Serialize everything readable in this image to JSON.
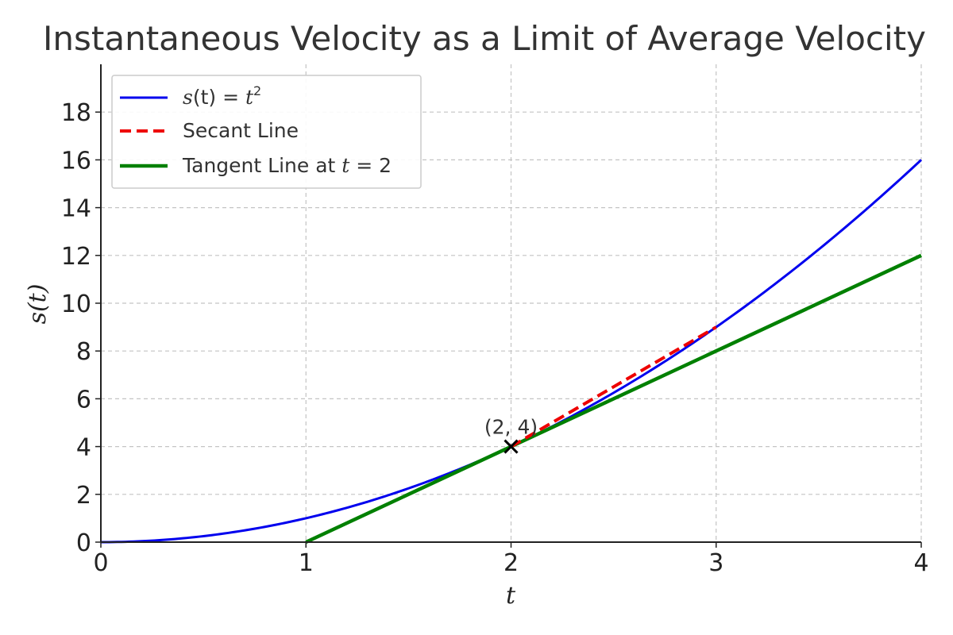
{
  "chart_data": {
    "type": "line",
    "title": "Instantaneous Velocity as a Limit of Average Velocity",
    "xlabel": "t",
    "ylabel": "s(t)",
    "xlim": [
      0,
      4
    ],
    "ylim": [
      0,
      20
    ],
    "xticks": [
      0,
      1,
      2,
      3,
      4
    ],
    "yticks": [
      0,
      2,
      4,
      6,
      8,
      10,
      12,
      14,
      16,
      18
    ],
    "grid": true,
    "legend_position": "top-left",
    "series": [
      {
        "name": "s(t) = t²",
        "legend": {
          "pre": "s",
          "mid": "(t) = ",
          "var2": "t",
          "sup": "2"
        },
        "color": "#0000ee",
        "style": "solid",
        "function": "t^2",
        "x": [
          0,
          0.5,
          1,
          1.5,
          2,
          2.5,
          3,
          3.5,
          4
        ],
        "y": [
          0,
          0.25,
          1,
          2.25,
          4,
          6.25,
          9,
          12.25,
          16
        ]
      },
      {
        "name": "Secant Line",
        "color": "#ee0000",
        "style": "dashed",
        "x": [
          2,
          3
        ],
        "y": [
          4,
          9
        ]
      },
      {
        "name": "Tangent Line at t = 2",
        "legend": {
          "text": "Tangent Line at ",
          "var": "t",
          "eq": " = 2"
        },
        "color": "#008000",
        "style": "solid",
        "x": [
          1,
          4
        ],
        "y": [
          0,
          12
        ]
      }
    ],
    "annotations": [
      {
        "text": "(2, 4)",
        "x": 2,
        "y": 4,
        "marker": "x"
      }
    ]
  }
}
